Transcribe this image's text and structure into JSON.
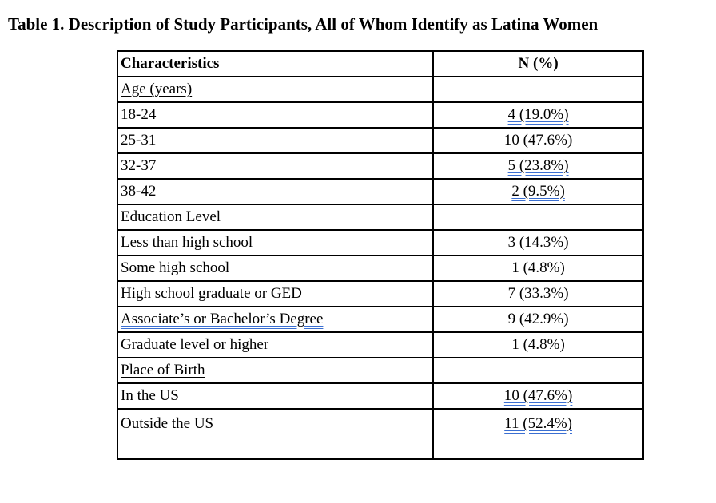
{
  "title": "Table 1. Description of Study Participants, All of Whom Identify as Latina Women",
  "table": {
    "headers": [
      "Characteristics",
      "N (%)"
    ],
    "sections": [
      {
        "label": "Age (years)",
        "rows": [
          {
            "label": "18-24",
            "value": "4 (19.0%)"
          },
          {
            "label": "25-31",
            "value": "10 (47.6%)"
          },
          {
            "label": "32-37",
            "value": "5 (23.8%)"
          },
          {
            "label": "38-42",
            "value": "2 (9.5%)"
          }
        ]
      },
      {
        "label": "Education Level",
        "rows": [
          {
            "label": "Less than high school",
            "value": "3 (14.3%)"
          },
          {
            "label": "Some high school",
            "value": "1 (4.8%)"
          },
          {
            "label": "High school graduate or GED",
            "value": "7 (33.3%)"
          },
          {
            "label": "Associate’s or Bachelor’s Degree",
            "value": "9 (42.9%)"
          },
          {
            "label": "Graduate level or higher",
            "value": "1 (4.8%)"
          }
        ]
      },
      {
        "label": "Place of Birth",
        "rows": [
          {
            "label": "In the US",
            "value": "10 (47.6%)"
          },
          {
            "label": "Outside the US",
            "value": "11 (52.4%)"
          }
        ]
      }
    ]
  }
}
